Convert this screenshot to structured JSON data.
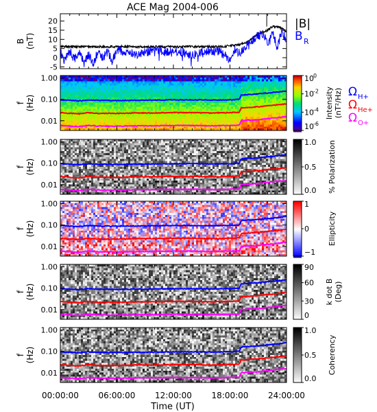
{
  "chart_data": {
    "type": "panel_stack",
    "title": "ACE Mag 2004-006",
    "xlabel": "Time (UT)",
    "x_tick_labels": [
      "00:00:00",
      "06:00:00",
      "12:00:00",
      "18:00:00",
      "24:00:00"
    ],
    "x_range_hours": [
      0,
      24
    ],
    "panels": [
      {
        "kind": "line",
        "ylabel_top": "B",
        "ylabel_unit": "(nT)",
        "yticks": [
          20,
          15,
          10,
          5,
          0,
          -5
        ],
        "ylim": [
          -6,
          24
        ],
        "series": [
          {
            "name": "|B|",
            "color": "#000000",
            "x": [
              0,
              1,
              2,
              3,
              4,
              5,
              6,
              7,
              8,
              9,
              10,
              11,
              12,
              13,
              14,
              15,
              16,
              17,
              18,
              19,
              20,
              20.5,
              21,
              21.5,
              22,
              22.5,
              23,
              23.5,
              24
            ],
            "y": [
              6,
              6,
              6,
              6,
              6,
              6,
              6,
              6,
              6,
              6,
              6,
              6,
              6,
              6,
              6,
              6,
              6,
              6,
              6.5,
              7,
              9,
              11,
              13,
              14,
              15,
              17,
              17,
              16,
              14
            ]
          },
          {
            "name": "B",
            "subscript": "R",
            "color": "#0000ff",
            "x": [
              0,
              0.5,
              1,
              1.5,
              2,
              2.5,
              3,
              3.5,
              4,
              4.5,
              5,
              5.5,
              6,
              7,
              8,
              9,
              10,
              11,
              12,
              13,
              14,
              15,
              16,
              17,
              18,
              18.5,
              19,
              19.5,
              20,
              20.5,
              21,
              21.5,
              22,
              22.5,
              23,
              23.5,
              24
            ],
            "y": [
              3,
              -2,
              4,
              -1,
              3,
              -3,
              2,
              -4,
              4,
              0,
              3,
              -2,
              4,
              3,
              2,
              3,
              4,
              3,
              4,
              3,
              1,
              3,
              4,
              3,
              -1,
              4,
              3,
              5,
              7,
              10,
              12,
              13,
              8,
              15,
              5,
              14,
              10
            ]
          }
        ]
      },
      {
        "kind": "spectrogram",
        "colormap": "rainbow",
        "cbar_label": "Intensity",
        "cbar_unit": "(nT²/Hz)",
        "cbar_ticks": [
          "10",
          "10",
          "10",
          "10"
        ],
        "cbar_exps": [
          "0",
          "-2",
          "-4",
          "-6"
        ]
      },
      {
        "kind": "spectrogram",
        "colormap": "gray_reversed",
        "cbar_label": "% Polarization",
        "cbar_ticks": [
          "1.0",
          "0.5",
          "0.0"
        ]
      },
      {
        "kind": "spectrogram",
        "colormap": "bwr",
        "cbar_label": "Ellipticity",
        "cbar_ticks": [
          "1",
          "0",
          "−1"
        ]
      },
      {
        "kind": "spectrogram",
        "colormap": "gray_reversed",
        "cbar_label": "k dot B",
        "cbar_unit": "(Deg)",
        "cbar_ticks": [
          "90",
          "60",
          "30",
          "0"
        ]
      },
      {
        "kind": "spectrogram",
        "colormap": "gray_reversed",
        "cbar_label": "Coherency",
        "cbar_ticks": [
          "1.0",
          "0.5",
          "0.0"
        ]
      }
    ],
    "spectrogram_ylabel_top": "f",
    "spectrogram_ylabel_unit": "(Hz)",
    "freq_ticks": [
      "1.00",
      "0.10",
      "0.01"
    ],
    "freq_tick_values": [
      1.0,
      0.1,
      0.01
    ],
    "ylim_hz": [
      0.0035,
      1.3
    ],
    "gyro_lines": [
      {
        "name": "Ω",
        "subscript": "H+",
        "color": "#0000ff",
        "x": [
          0,
          1,
          2,
          3,
          4,
          6,
          8,
          10,
          12,
          14,
          16,
          18,
          19,
          19.2,
          20,
          21,
          22,
          23,
          24
        ],
        "y_hz": [
          0.095,
          0.09,
          0.085,
          0.095,
          0.09,
          0.088,
          0.09,
          0.092,
          0.095,
          0.095,
          0.093,
          0.095,
          0.1,
          0.16,
          0.17,
          0.18,
          0.2,
          0.22,
          0.25
        ]
      },
      {
        "name": "Ω",
        "subscript": "He+",
        "color": "#ff0000",
        "x": [
          0,
          1,
          2,
          3,
          4,
          6,
          8,
          10,
          12,
          14,
          16,
          18,
          19,
          19.2,
          20,
          21,
          22,
          23,
          24
        ],
        "y_hz": [
          0.024,
          0.022,
          0.021,
          0.024,
          0.022,
          0.022,
          0.023,
          0.023,
          0.024,
          0.024,
          0.023,
          0.024,
          0.025,
          0.04,
          0.042,
          0.045,
          0.05,
          0.055,
          0.062
        ]
      },
      {
        "name": "Ω",
        "subscript": "O+",
        "color": "#ff00ff",
        "x": [
          0,
          1,
          2,
          3,
          4,
          6,
          8,
          10,
          12,
          14,
          16,
          18,
          19,
          19.2,
          20,
          21,
          22,
          23,
          24
        ],
        "y_hz": [
          0.006,
          0.0056,
          0.0053,
          0.006,
          0.0056,
          0.0055,
          0.0057,
          0.0058,
          0.006,
          0.006,
          0.0058,
          0.006,
          0.0062,
          0.01,
          0.0105,
          0.011,
          0.0125,
          0.014,
          0.0155
        ]
      }
    ]
  }
}
